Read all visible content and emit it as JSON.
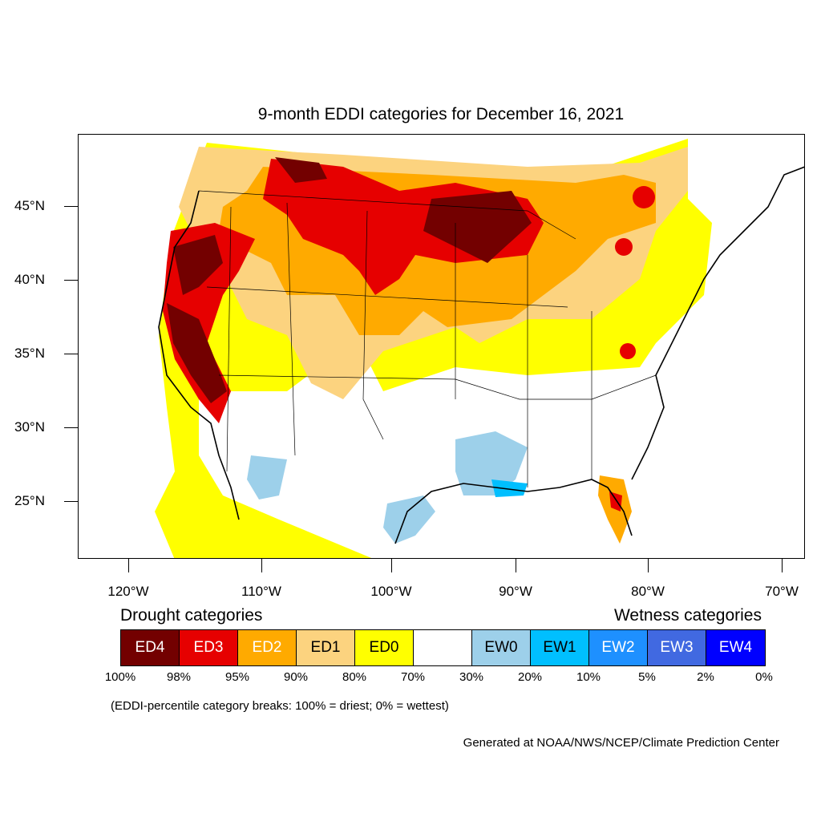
{
  "title": "9-month EDDI categories for December 16, 2021",
  "lat_labels": [
    "45°N",
    "40°N",
    "35°N",
    "30°N",
    "25°N"
  ],
  "lon_labels": [
    "120°W",
    "110°W",
    "100°W",
    "90°W",
    "80°W",
    "70°W"
  ],
  "legend": {
    "drought_heading": "Drought categories",
    "wetness_heading": "Wetness categories",
    "categories": [
      {
        "label": "ED4",
        "color": "#730000",
        "text_color": "#ffffff"
      },
      {
        "label": "ED3",
        "color": "#e60000",
        "text_color": "#ffffff"
      },
      {
        "label": "ED2",
        "color": "#ffaa00",
        "text_color": "#ffffff"
      },
      {
        "label": "ED1",
        "color": "#fcd37f",
        "text_color": "#000000"
      },
      {
        "label": "ED0",
        "color": "#ffff00",
        "text_color": "#000000"
      },
      {
        "label": "",
        "color": "#ffffff",
        "text_color": "#000000"
      },
      {
        "label": "EW0",
        "color": "#9dd0ea",
        "text_color": "#000000"
      },
      {
        "label": "EW1",
        "color": "#00bfff",
        "text_color": "#000000"
      },
      {
        "label": "EW2",
        "color": "#1e90ff",
        "text_color": "#ffffff"
      },
      {
        "label": "EW3",
        "color": "#4169e1",
        "text_color": "#ffffff"
      },
      {
        "label": "EW4",
        "color": "#0000ff",
        "text_color": "#ffffff"
      }
    ],
    "breaks": [
      "100%",
      "98%",
      "95%",
      "90%",
      "80%",
      "70%",
      "30%",
      "20%",
      "10%",
      "5%",
      "2%",
      "0%"
    ]
  },
  "note": "(EDDI-percentile category breaks: 100% = driest; 0% = wettest)",
  "credit": "Generated at NOAA/NWS/NCEP/Climate Prediction Center"
}
